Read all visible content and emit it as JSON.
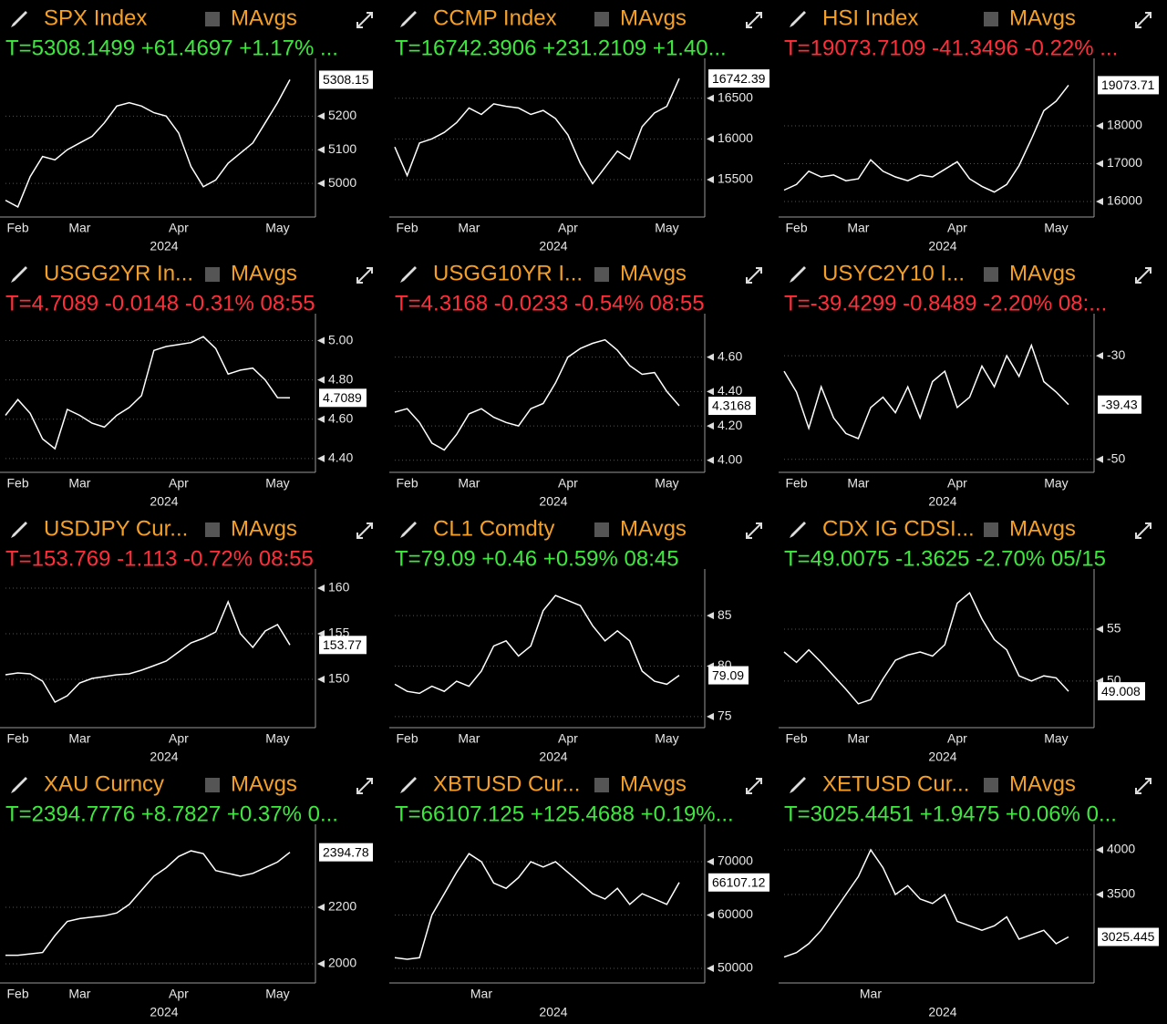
{
  "chart_data": [
    {
      "type": "line",
      "title": "SPX Index",
      "toggle_label": "MAvgs",
      "quote": "T=5308.1499 +61.4697 +1.17% ...",
      "quote_color": "#3ee83e",
      "color": "#ffffff",
      "categories": [
        null,
        "Feb",
        null,
        null,
        null,
        null,
        "Mar",
        null,
        null,
        null,
        null,
        null,
        null,
        null,
        "Apr",
        null,
        null,
        null,
        null,
        null,
        null,
        null,
        "May",
        null
      ],
      "values": [
        4950,
        4930,
        5020,
        5080,
        5070,
        5100,
        5120,
        5140,
        5180,
        5230,
        5240,
        5230,
        5210,
        5200,
        5150,
        5050,
        4990,
        5010,
        5060,
        5090,
        5120,
        5180,
        5240,
        5308.15
      ],
      "x_label": "2024",
      "ylim": [
        4900,
        5350
      ],
      "yticks": [
        5200,
        5100,
        5000
      ],
      "last_label": 5308.15,
      "grid": true
    },
    {
      "type": "line",
      "title": "CCMP Index",
      "toggle_label": "MAvgs",
      "quote": "T=16742.3906 +231.2109 +1.40...",
      "quote_color": "#3ee83e",
      "color": "#ffffff",
      "categories": [
        null,
        "Feb",
        null,
        null,
        null,
        null,
        "Mar",
        null,
        null,
        null,
        null,
        null,
        null,
        null,
        "Apr",
        null,
        null,
        null,
        null,
        null,
        null,
        null,
        "May",
        null
      ],
      "values": [
        15900,
        15550,
        15950,
        16000,
        16080,
        16200,
        16380,
        16300,
        16430,
        16400,
        16380,
        16300,
        16350,
        16250,
        16050,
        15700,
        15450,
        15650,
        15850,
        15750,
        16150,
        16320,
        16400,
        16742.39
      ],
      "x_label": "2024",
      "ylim": [
        15040,
        16900
      ],
      "yticks": [
        16500,
        16000,
        15500
      ],
      "last_label": 16742.39,
      "grid": true
    },
    {
      "type": "line",
      "title": "HSI Index",
      "toggle_label": "MAvgs",
      "quote": "T=19073.7109 -41.3496 -0.22% ...",
      "quote_color": "#ff2f3a",
      "color": "#ffffff",
      "categories": [
        null,
        "Feb",
        null,
        null,
        null,
        null,
        "Mar",
        null,
        null,
        null,
        null,
        null,
        null,
        null,
        "Apr",
        null,
        null,
        null,
        null,
        null,
        null,
        null,
        "May",
        null
      ],
      "values": [
        16300,
        16450,
        16800,
        16650,
        16700,
        16550,
        16600,
        17100,
        16800,
        16650,
        16550,
        16700,
        16650,
        16850,
        17050,
        16600,
        16400,
        16250,
        16450,
        16950,
        17650,
        18400,
        18650,
        19073.71
      ],
      "x_label": "2024",
      "ylim": [
        15590,
        19590
      ],
      "yticks": [
        18000,
        17000,
        16000
      ],
      "last_label": 19073.71,
      "grid": true
    },
    {
      "type": "line",
      "title": "USGG2YR In...",
      "toggle_label": "MAvgs",
      "quote": "T=4.7089 -0.0148 -0.31% 08:55",
      "quote_color": "#ff2f3a",
      "color": "#ffffff",
      "categories": [
        null,
        "Feb",
        null,
        null,
        null,
        null,
        "Mar",
        null,
        null,
        null,
        null,
        null,
        null,
        null,
        "Apr",
        null,
        null,
        null,
        null,
        null,
        null,
        null,
        "May",
        null
      ],
      "values": [
        4.62,
        4.7,
        4.63,
        4.5,
        4.45,
        4.65,
        4.62,
        4.58,
        4.56,
        4.62,
        4.66,
        4.72,
        4.95,
        4.97,
        4.98,
        4.99,
        5.02,
        4.96,
        4.83,
        4.85,
        4.86,
        4.8,
        4.71,
        4.7089
      ],
      "x_label": "2024",
      "ylim": [
        4.33,
        5.1
      ],
      "yticks": [
        {
          "value": 5,
          "label": "5.00"
        },
        {
          "value": 4.8,
          "label": "4.80"
        },
        {
          "value": 4.6,
          "label": "4.60"
        },
        {
          "value": 4.4,
          "label": "4.40"
        }
      ],
      "last_label": 4.7089,
      "grid": true
    },
    {
      "type": "line",
      "title": "USGG10YR I...",
      "toggle_label": "MAvgs",
      "quote": "T=4.3168 -0.0233 -0.54% 08:55",
      "quote_color": "#ff2f3a",
      "color": "#ffffff",
      "categories": [
        null,
        "Feb",
        null,
        null,
        null,
        null,
        "Mar",
        null,
        null,
        null,
        null,
        null,
        null,
        null,
        "Apr",
        null,
        null,
        null,
        null,
        null,
        null,
        null,
        "May",
        null
      ],
      "values": [
        4.28,
        4.3,
        4.22,
        4.1,
        4.06,
        4.15,
        4.27,
        4.3,
        4.25,
        4.22,
        4.2,
        4.3,
        4.33,
        4.45,
        4.6,
        4.65,
        4.68,
        4.7,
        4.64,
        4.55,
        4.5,
        4.51,
        4.4,
        4.3168
      ],
      "x_label": "2024",
      "ylim": [
        3.93,
        4.81
      ],
      "yticks": [
        {
          "value": 4.6,
          "label": "4.60"
        },
        {
          "value": 4.4,
          "label": "4.40"
        },
        {
          "value": 4.2,
          "label": "4.20"
        },
        {
          "value": 4,
          "label": "4.00"
        }
      ],
      "last_label": 4.3168,
      "grid": true
    },
    {
      "type": "line",
      "title": "USYC2Y10 I...",
      "toggle_label": "MAvgs",
      "quote": "T=-39.4299 -0.8489 -2.20% 08:...",
      "quote_color": "#ff2f3a",
      "color": "#ffffff",
      "categories": [
        null,
        "Feb",
        null,
        null,
        null,
        null,
        "Mar",
        null,
        null,
        null,
        null,
        null,
        null,
        null,
        "Apr",
        null,
        null,
        null,
        null,
        null,
        null,
        null,
        "May",
        null
      ],
      "values": [
        -33,
        -37,
        -44,
        -36,
        -42,
        -45,
        -46,
        -40,
        -38,
        -41,
        -36,
        -42,
        -35,
        -33,
        -40,
        -38,
        -32,
        -36,
        -30,
        -34,
        -28,
        -35,
        -37,
        -39.43
      ],
      "x_label": "2024",
      "ylim": [
        -52.5,
        -23.3
      ],
      "yticks": [
        -30,
        -50
      ],
      "last_label": -39.43,
      "grid": true
    },
    {
      "type": "line",
      "title": "USDJPY Cur...",
      "toggle_label": "MAvgs",
      "quote": "T=153.769 -1.113 -0.72% 08:55",
      "quote_color": "#ff2f3a",
      "color": "#ffffff",
      "categories": [
        null,
        "Feb",
        null,
        null,
        null,
        null,
        "Mar",
        null,
        null,
        null,
        null,
        null,
        null,
        null,
        "Apr",
        null,
        null,
        null,
        null,
        null,
        null,
        null,
        "May",
        null
      ],
      "values": [
        150.5,
        150.7,
        150.6,
        149.8,
        147.5,
        148.2,
        149.6,
        150.1,
        150.3,
        150.5,
        150.6,
        151.0,
        151.5,
        152.0,
        153.0,
        154.0,
        154.5,
        155.2,
        158.5,
        155.0,
        153.5,
        155.3,
        156.0,
        153.77
      ],
      "x_label": "2024",
      "ylim": [
        144.7,
        161.3
      ],
      "yticks": [
        160,
        155,
        150
      ],
      "last_label": 153.77,
      "grid": true
    },
    {
      "type": "line",
      "title": "CL1 Comdty",
      "toggle_label": "MAvgs",
      "quote": "T=79.09 +0.46 +0.59% 08:45",
      "quote_color": "#3ee83e",
      "color": "#ffffff",
      "categories": [
        null,
        "Feb",
        null,
        null,
        null,
        null,
        "Mar",
        null,
        null,
        null,
        null,
        null,
        null,
        null,
        "Apr",
        null,
        null,
        null,
        null,
        null,
        null,
        null,
        "May",
        null
      ],
      "values": [
        78.2,
        77.5,
        77.3,
        78.0,
        77.5,
        78.5,
        78.0,
        79.5,
        82.0,
        82.5,
        81.0,
        82.0,
        85.5,
        87.0,
        86.5,
        86.0,
        84.0,
        82.5,
        83.5,
        82.5,
        79.5,
        78.5,
        78.2,
        79.09
      ],
      "x_label": "2024",
      "ylim": [
        73.9,
        88.9
      ],
      "yticks": [
        85,
        80,
        75
      ],
      "last_label": 79.09,
      "grid": true
    },
    {
      "type": "line",
      "title": "CDX IG CDSI...",
      "toggle_label": "MAvgs",
      "quote": "T=49.0075 -1.3625 -2.70% 05/15",
      "quote_color": "#3ee83e",
      "color": "#ffffff",
      "categories": [
        null,
        "Feb",
        null,
        null,
        null,
        null,
        "Mar",
        null,
        null,
        null,
        null,
        null,
        null,
        null,
        "Apr",
        null,
        null,
        null,
        null,
        null,
        null,
        null,
        "May",
        null
      ],
      "values": [
        52.8,
        51.8,
        53.0,
        51.8,
        50.5,
        49.2,
        47.8,
        48.2,
        50.2,
        52.0,
        52.5,
        52.8,
        52.4,
        53.5,
        57.5,
        58.5,
        56.0,
        54.0,
        53.0,
        50.5,
        50.0,
        50.5,
        50.3,
        49.0075
      ],
      "x_label": "2024",
      "ylim": [
        45.5,
        60.1
      ],
      "yticks": [
        55,
        50
      ],
      "last_label": 49.008,
      "grid": true
    },
    {
      "type": "line",
      "title": "XAU Curncy",
      "toggle_label": "MAvgs",
      "quote": "T=2394.7776 +8.7827 +0.37% 0...",
      "quote_color": "#3ee83e",
      "color": "#ffffff",
      "categories": [
        null,
        "Feb",
        null,
        null,
        null,
        null,
        "Mar",
        null,
        null,
        null,
        null,
        null,
        null,
        null,
        "Apr",
        null,
        null,
        null,
        null,
        null,
        null,
        null,
        "May",
        null
      ],
      "values": [
        2030,
        2030,
        2035,
        2040,
        2100,
        2150,
        2160,
        2165,
        2170,
        2180,
        2210,
        2260,
        2310,
        2340,
        2380,
        2400,
        2390,
        2330,
        2320,
        2310,
        2320,
        2340,
        2360,
        2394.78
      ],
      "x_label": "2024",
      "ylim": [
        1932,
        2468
      ],
      "yticks": [
        2200,
        2000
      ],
      "last_label": 2394.78,
      "grid": true
    },
    {
      "type": "line",
      "title": "XBTUSD Cur...",
      "toggle_label": "MAvgs",
      "quote": "T=66107.125 +125.4688 +0.19%...",
      "quote_color": "#3ee83e",
      "color": "#ffffff",
      "categories": [
        null,
        null,
        null,
        null,
        null,
        null,
        null,
        "Mar",
        null,
        null,
        null,
        null,
        null,
        null,
        null,
        null,
        null,
        null,
        null,
        null,
        null,
        null,
        null,
        null
      ],
      "values": [
        52000,
        51700,
        52000,
        60000,
        64000,
        68000,
        71500,
        70000,
        66000,
        65000,
        67000,
        70000,
        69000,
        70000,
        68000,
        66000,
        64000,
        63000,
        65000,
        62000,
        64000,
        63000,
        62000,
        66107.12
      ],
      "x_label": "2024",
      "ylim": [
        47260,
        75640
      ],
      "yticks": [
        70000,
        60000,
        50000
      ],
      "last_label": 66107.12,
      "grid": true
    },
    {
      "type": "line",
      "title": "XETUSD Cur...",
      "toggle_label": "MAvgs",
      "quote": "T=3025.4451 +1.9475 +0.06% 0...",
      "quote_color": "#3ee83e",
      "color": "#ffffff",
      "categories": [
        null,
        null,
        null,
        null,
        null,
        null,
        null,
        "Mar",
        null,
        null,
        null,
        null,
        null,
        null,
        null,
        null,
        null,
        null,
        null,
        null,
        null,
        null,
        null,
        null
      ],
      "values": [
        2800,
        2850,
        2950,
        3100,
        3300,
        3500,
        3700,
        4000,
        3800,
        3500,
        3600,
        3450,
        3400,
        3500,
        3200,
        3150,
        3100,
        3150,
        3250,
        3000,
        3050,
        3100,
        2950,
        3025.445
      ],
      "x_label": "2024",
      "ylim": [
        2510,
        4204
      ],
      "yticks": [
        4000,
        3500
      ],
      "last_label": 3025.445,
      "grid": true
    }
  ]
}
